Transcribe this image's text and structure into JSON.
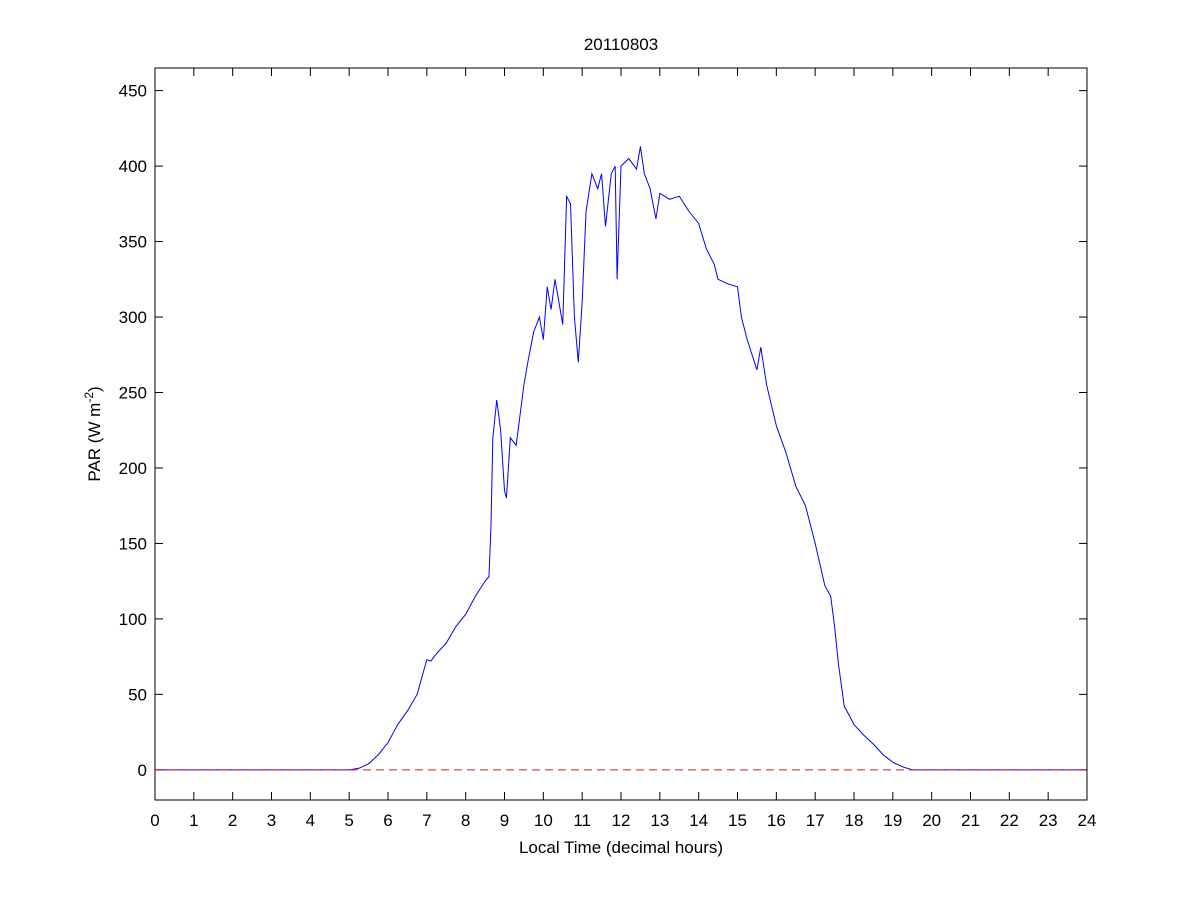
{
  "chart_data": {
    "type": "line",
    "title": "20110803",
    "xlabel": "Local Time (decimal hours)",
    "ylabel": [
      "PAR (W m",
      "-2",
      ")"
    ],
    "xlim": [
      0,
      24
    ],
    "xticks": [
      0,
      1,
      2,
      3,
      4,
      5,
      6,
      7,
      8,
      9,
      10,
      11,
      12,
      13,
      14,
      15,
      16,
      17,
      18,
      19,
      20,
      21,
      22,
      23,
      24
    ],
    "ylim": [
      -20,
      465
    ],
    "yticks": [
      0,
      50,
      100,
      150,
      200,
      250,
      300,
      350,
      400,
      450
    ],
    "reference_line": {
      "value": 0,
      "color": "#d62020",
      "style": "dashed"
    },
    "x": [
      0,
      5,
      5.25,
      5.5,
      5.75,
      6,
      6.25,
      6.5,
      6.75,
      7,
      7.1,
      7.25,
      7.5,
      7.75,
      8,
      8.25,
      8.5,
      8.6,
      8.65,
      8.7,
      8.8,
      8.9,
      9,
      9.05,
      9.15,
      9.3,
      9.5,
      9.6,
      9.75,
      9.9,
      10,
      10.1,
      10.2,
      10.3,
      10.4,
      10.5,
      10.6,
      10.7,
      10.8,
      10.9,
      11,
      11.1,
      11.25,
      11.4,
      11.5,
      11.6,
      11.75,
      11.85,
      11.9,
      12,
      12.2,
      12.4,
      12.5,
      12.6,
      12.75,
      12.9,
      13,
      13.25,
      13.5,
      13.75,
      14,
      14.2,
      14.4,
      14.5,
      14.75,
      15,
      15.1,
      15.25,
      15.5,
      15.6,
      15.75,
      16,
      16.25,
      16.5,
      16.75,
      17,
      17.25,
      17.4,
      17.5,
      17.6,
      17.75,
      17.9,
      18,
      18.25,
      18.5,
      18.75,
      19,
      19.25,
      19.5,
      24
    ],
    "series": [
      {
        "color": "#0000ff",
        "values": [
          0,
          0,
          1,
          4,
          10,
          18,
          30,
          39,
          50,
          73,
          72,
          77,
          84,
          95,
          103,
          115,
          125,
          128,
          160,
          220,
          245,
          225,
          185,
          180,
          220,
          215,
          255,
          270,
          290,
          300,
          285,
          320,
          305,
          325,
          310,
          295,
          380,
          375,
          300,
          270,
          310,
          370,
          395,
          385,
          395,
          360,
          395,
          400,
          325,
          400,
          405,
          398,
          413,
          395,
          385,
          365,
          382,
          378,
          380,
          370,
          362,
          345,
          335,
          325,
          322,
          320,
          300,
          285,
          265,
          280,
          255,
          228,
          210,
          188,
          175,
          150,
          122,
          115,
          95,
          70,
          42,
          35,
          30,
          23,
          17,
          10,
          5,
          2,
          0,
          0
        ]
      }
    ]
  }
}
